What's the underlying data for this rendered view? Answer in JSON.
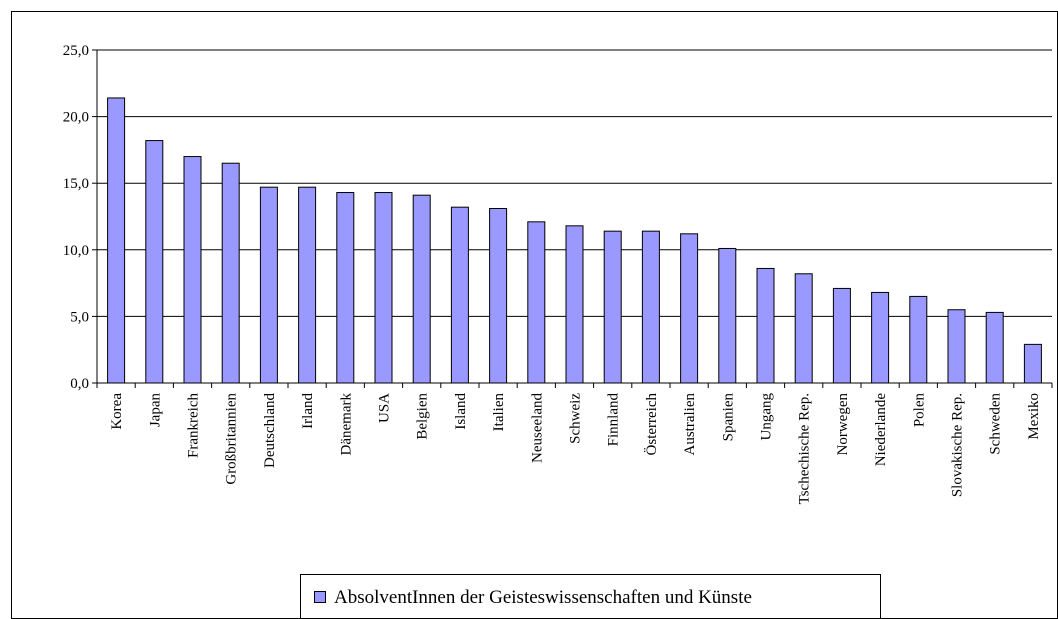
{
  "chart_data": {
    "type": "bar",
    "categories": [
      "Korea",
      "Japan",
      "Frankreich",
      "Großbritannien",
      "Deutschland",
      "Irland",
      "Dänemark",
      "USA",
      "Belgien",
      "Island",
      "Italien",
      "Neuseeland",
      "Schweiz",
      "Finnland",
      "Österreich",
      "Australien",
      "Spanien",
      "Ungang",
      "Tschechische Rep.",
      "Norwegen",
      "Niederlande",
      "Polen",
      "Slovakische Rep.",
      "Schweden",
      "Mexiko"
    ],
    "series": [
      {
        "name": "AbsolventInnen der Geisteswissenschaften und Künste",
        "color": "#9999ff",
        "values": [
          21.4,
          18.2,
          17.0,
          16.5,
          14.7,
          14.7,
          14.3,
          14.3,
          14.1,
          13.2,
          13.1,
          12.1,
          11.8,
          11.4,
          11.4,
          11.2,
          10.1,
          8.6,
          8.2,
          7.1,
          6.8,
          6.5,
          5.5,
          5.3,
          2.9
        ]
      }
    ],
    "ylim": [
      0,
      25
    ],
    "yticks": [
      {
        "value": 0,
        "label": "0,0"
      },
      {
        "value": 5,
        "label": "5,0"
      },
      {
        "value": 10,
        "label": "10,0"
      },
      {
        "value": 15,
        "label": "15,0"
      },
      {
        "value": 20,
        "label": "20,0"
      },
      {
        "value": 25,
        "label": "25,0"
      }
    ],
    "grid": true,
    "legend": "bottom"
  }
}
